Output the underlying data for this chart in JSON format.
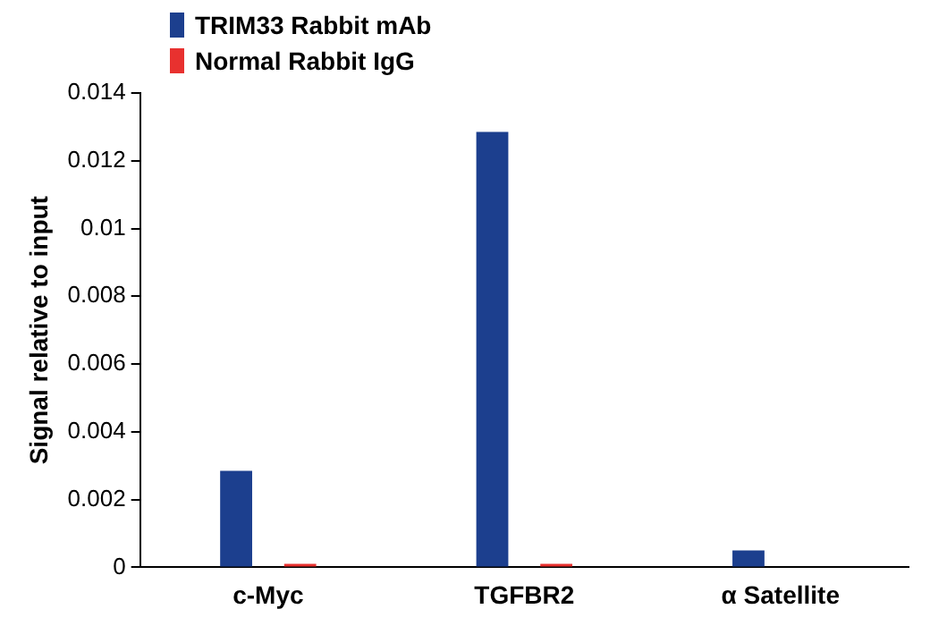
{
  "chart_data": {
    "type": "bar",
    "ylabel": "Signal relative to input",
    "categories": [
      "c-Myc",
      "TGFBR2",
      "α Satellite"
    ],
    "series": [
      {
        "name": "TRIM33 Rabbit mAb",
        "color": "#1c3f8e",
        "values": [
          0.00285,
          0.01285,
          0.0005
        ]
      },
      {
        "name": "Normal Rabbit IgG",
        "color": "#e8312f",
        "values": [
          0.0001,
          0.0001,
          0
        ]
      }
    ],
    "ylim": [
      0,
      0.014
    ],
    "yticks": [
      0,
      0.002,
      0.004,
      0.006,
      0.008,
      0.01,
      0.012,
      0.014
    ],
    "grid": false,
    "legend": "top left"
  }
}
